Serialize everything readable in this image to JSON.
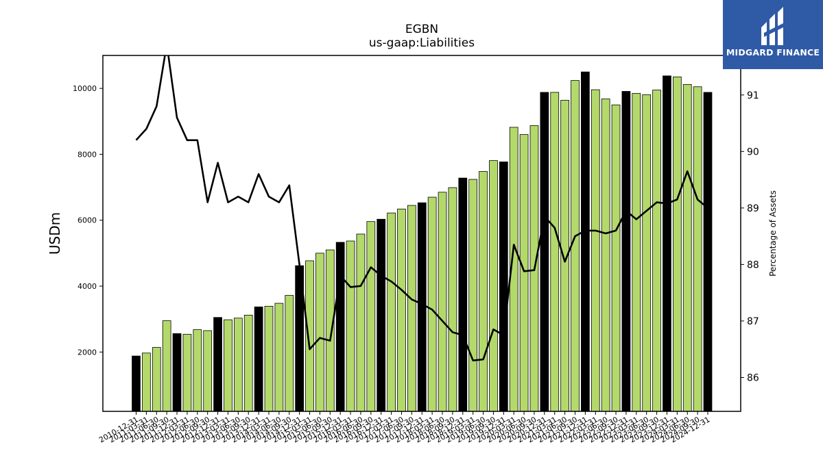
{
  "logo": {
    "text": "MIDGARD FINANCE"
  },
  "chart_data": {
    "type": "bar",
    "title": "EGBN",
    "subtitle": "us-gaap:Liabilities",
    "ylabel": "USDm",
    "y2label": "Percentage of Assets",
    "ylim": [
      200,
      11000
    ],
    "y2lim": [
      85.4,
      91.7
    ],
    "yticks": [
      2000,
      4000,
      6000,
      8000,
      10000
    ],
    "y2ticks": [
      86,
      87,
      88,
      89,
      90,
      91
    ],
    "colors": {
      "bar": "#b3d96b",
      "bar_year_end": "#000000",
      "line": "#000000"
    },
    "categories": [
      "2010-12-31",
      "2011-03-31",
      "2011-06-30",
      "2011-09-30",
      "2011-12-31",
      "2012-03-31",
      "2012-06-30",
      "2012-09-30",
      "2012-12-31",
      "2013-03-31",
      "2013-06-30",
      "2013-09-30",
      "2013-12-31",
      "2014-03-31",
      "2014-06-30",
      "2014-09-30",
      "2014-12-31",
      "2015-03-31",
      "2015-06-30",
      "2015-09-30",
      "2015-12-31",
      "2016-03-31",
      "2016-06-30",
      "2016-09-30",
      "2016-12-31",
      "2017-03-31",
      "2017-06-30",
      "2017-09-30",
      "2017-12-31",
      "2018-03-31",
      "2018-06-30",
      "2018-09-30",
      "2018-12-31",
      "2019-03-31",
      "2019-06-30",
      "2019-09-30",
      "2019-12-31",
      "2020-03-31",
      "2020-06-30",
      "2020-09-30",
      "2020-12-31",
      "2021-03-31",
      "2021-06-30",
      "2021-09-30",
      "2021-12-31",
      "2022-03-31",
      "2022-06-30",
      "2022-09-30",
      "2022-12-31",
      "2023-03-31",
      "2023-06-30",
      "2023-09-30",
      "2023-12-31",
      "2024-03-31",
      "2024-06-30",
      "2024-09-30",
      "2024-12-31"
    ],
    "year_end_flags": [
      1,
      0,
      0,
      0,
      1,
      0,
      0,
      0,
      1,
      0,
      0,
      0,
      1,
      0,
      0,
      0,
      1,
      0,
      0,
      0,
      1,
      0,
      0,
      0,
      1,
      0,
      0,
      0,
      1,
      0,
      0,
      0,
      1,
      0,
      0,
      0,
      1,
      0,
      0,
      0,
      1,
      0,
      0,
      0,
      1,
      0,
      0,
      0,
      1,
      0,
      0,
      0,
      1,
      0,
      0,
      0,
      1
    ],
    "series": [
      {
        "values": [
          1880,
          1970,
          2140,
          2950,
          2560,
          2540,
          2680,
          2650,
          3050,
          2980,
          3030,
          3120,
          3370,
          3390,
          3480,
          3720,
          4620,
          4770,
          5000,
          5100,
          5330,
          5370,
          5580,
          5960,
          6030,
          6220,
          6340,
          6450,
          6530,
          6700,
          6850,
          6990,
          7280,
          7240,
          7480,
          7810,
          7770,
          8820,
          8600,
          8870,
          9880,
          9880,
          9640,
          10240,
          10500,
          9960,
          9680,
          9500,
          9910,
          9850,
          9810,
          9950,
          10380,
          10350,
          10120,
          10050,
          9880
        ]
      },
      {
        "axis": "right",
        "values": [
          90.2,
          90.4,
          90.8,
          91.9,
          90.6,
          90.2,
          90.2,
          89.1,
          89.8,
          89.1,
          89.2,
          89.1,
          89.6,
          89.2,
          89.1,
          89.4,
          88.0,
          86.5,
          86.7,
          86.65,
          87.8,
          87.6,
          87.62,
          87.95,
          87.8,
          87.7,
          87.55,
          87.38,
          87.3,
          87.2,
          87.0,
          86.8,
          86.75,
          86.3,
          86.32,
          86.85,
          86.75,
          88.35,
          87.88,
          87.9,
          88.85,
          88.65,
          88.05,
          88.5,
          88.6,
          88.6,
          88.55,
          88.6,
          88.95,
          88.8,
          88.95,
          89.1,
          89.08,
          89.15,
          89.65,
          89.15,
          89.0
        ]
      }
    ]
  }
}
